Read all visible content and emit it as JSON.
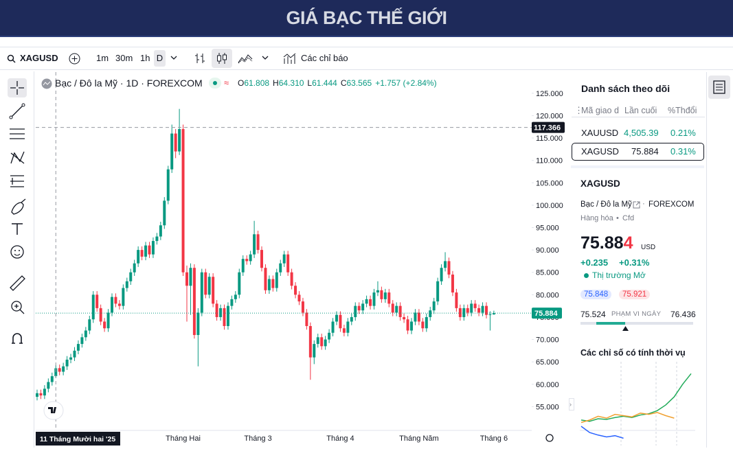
{
  "header": {
    "title": "GIÁ BẠC THẾ GIỚI"
  },
  "toolbar": {
    "symbol": "XAGUSD",
    "intervals": [
      "1m",
      "30m",
      "1h",
      "D"
    ],
    "indicators": "Các chỉ báo"
  },
  "chart_data": {
    "type": "candlestick",
    "title": "Bạc / Đô la Mỹ · 1D · FOREXCOM",
    "ohlc": [
      {
        "label": "O",
        "value": "61.808"
      },
      {
        "label": "H",
        "value": "64.310"
      },
      {
        "label": "L",
        "value": "61.444"
      },
      {
        "label": "C",
        "value": "63.565"
      }
    ],
    "change": "+1.757 (+2.84%)",
    "candles": [
      [
        57.2,
        58.8,
        56.4,
        58.0
      ],
      [
        58.0,
        58.8,
        56.7,
        57.5
      ],
      [
        57.5,
        59.8,
        56.7,
        59.0
      ],
      [
        59.0,
        61.3,
        58.2,
        60.5
      ],
      [
        60.5,
        62.6,
        59.7,
        61.8
      ],
      [
        61.808,
        64.31,
        61.444,
        63.565
      ],
      [
        63.6,
        64.4,
        62.0,
        62.8
      ],
      [
        62.8,
        64.8,
        62.0,
        64.0
      ],
      [
        64.0,
        66.3,
        63.2,
        65.5
      ],
      [
        65.5,
        66.8,
        64.7,
        66.0
      ],
      [
        66.0,
        68.3,
        65.2,
        67.5
      ],
      [
        67.5,
        69.8,
        66.7,
        69.0
      ],
      [
        69.0,
        71.3,
        68.2,
        70.5
      ],
      [
        70.5,
        72.8,
        69.7,
        72.0
      ],
      [
        72.0,
        75.3,
        71.2,
        74.5
      ],
      [
        74.5,
        80.8,
        73.7,
        80.0
      ],
      [
        80.0,
        80.8,
        76.2,
        77.0
      ],
      [
        77.0,
        77.8,
        73.2,
        74.0
      ],
      [
        74.0,
        74.8,
        71.7,
        72.5
      ],
      [
        72.5,
        76.8,
        71.7,
        76.0
      ],
      [
        76.0,
        80.3,
        75.2,
        79.5
      ],
      [
        79.5,
        80.3,
        77.2,
        78.0
      ],
      [
        78.0,
        78.8,
        76.7,
        77.5
      ],
      [
        77.5,
        82.3,
        76.7,
        81.5
      ],
      [
        81.5,
        83.8,
        80.7,
        83.0
      ],
      [
        83.0,
        85.8,
        82.2,
        85.0
      ],
      [
        85.0,
        87.8,
        84.2,
        87.0
      ],
      [
        87.0,
        90.8,
        86.2,
        90.0
      ],
      [
        90.0,
        90.8,
        87.7,
        88.5
      ],
      [
        88.5,
        91.8,
        87.7,
        91.0
      ],
      [
        91.0,
        91.8,
        88.2,
        89.0
      ],
      [
        89.0,
        92.8,
        88.2,
        92.0
      ],
      [
        92.0,
        93.8,
        91.2,
        93.0
      ],
      [
        93.0,
        96.3,
        92.2,
        95.5
      ],
      [
        95.5,
        101.8,
        94.7,
        101.0
      ],
      [
        101.0,
        108.8,
        100.2,
        108.0
      ],
      [
        108.0,
        118.0,
        107.2,
        116.0
      ],
      [
        116.0,
        117.0,
        110.5,
        112.0
      ],
      [
        112.0,
        121.5,
        111.2,
        117.0
      ],
      [
        117.0,
        118.0,
        84.2,
        85.0
      ],
      [
        85.0,
        86.5,
        74.0,
        82.0
      ],
      [
        82.0,
        87.0,
        75.5,
        86.0
      ],
      [
        86.0,
        86.8,
        70.2,
        71.0
      ],
      [
        71.0,
        77.0,
        64.0,
        76.0
      ],
      [
        76.0,
        85.8,
        75.2,
        85.0
      ],
      [
        85.0,
        85.8,
        79.2,
        80.0
      ],
      [
        80.0,
        84.8,
        79.2,
        84.0
      ],
      [
        84.0,
        84.8,
        77.2,
        78.0
      ],
      [
        78.0,
        78.8,
        74.2,
        75.0
      ],
      [
        75.0,
        77.8,
        74.2,
        77.0
      ],
      [
        77.0,
        77.8,
        72.2,
        73.0
      ],
      [
        73.0,
        78.3,
        72.2,
        77.5
      ],
      [
        77.5,
        79.8,
        76.7,
        79.0
      ],
      [
        79.0,
        80.8,
        78.2,
        80.0
      ],
      [
        80.0,
        85.8,
        79.2,
        85.0
      ],
      [
        85.0,
        88.8,
        84.2,
        88.0
      ],
      [
        88.0,
        88.8,
        86.7,
        87.5
      ],
      [
        87.5,
        89.8,
        86.7,
        89.0
      ],
      [
        89.0,
        96.5,
        88.2,
        93.5
      ],
      [
        93.5,
        94.3,
        89.2,
        90.0
      ],
      [
        90.0,
        90.8,
        85.2,
        86.0
      ],
      [
        86.0,
        86.8,
        80.2,
        81.0
      ],
      [
        81.0,
        84.3,
        80.2,
        83.5
      ],
      [
        83.5,
        84.3,
        80.7,
        81.5
      ],
      [
        81.5,
        85.8,
        80.7,
        85.0
      ],
      [
        85.0,
        87.8,
        84.2,
        87.0
      ],
      [
        87.0,
        89.8,
        86.2,
        89.0
      ],
      [
        89.0,
        89.8,
        84.2,
        85.0
      ],
      [
        85.0,
        85.8,
        81.2,
        82.0
      ],
      [
        82.0,
        82.8,
        79.2,
        80.0
      ],
      [
        80.0,
        80.8,
        77.7,
        78.5
      ],
      [
        78.5,
        79.3,
        75.2,
        76.0
      ],
      [
        76.0,
        76.8,
        72.2,
        73.0
      ],
      [
        73.0,
        73.8,
        61.0,
        66.0
      ],
      [
        66.0,
        69.8,
        64.5,
        69.0
      ],
      [
        69.0,
        71.3,
        68.2,
        70.5
      ],
      [
        70.5,
        71.3,
        67.7,
        68.5
      ],
      [
        68.5,
        70.8,
        67.7,
        70.0
      ],
      [
        70.0,
        72.3,
        69.2,
        71.5
      ],
      [
        71.5,
        74.8,
        70.7,
        74.0
      ],
      [
        74.0,
        76.3,
        73.2,
        75.5
      ],
      [
        75.5,
        76.3,
        71.7,
        72.5
      ],
      [
        72.5,
        73.3,
        70.7,
        71.5
      ],
      [
        71.5,
        74.8,
        70.7,
        74.0
      ],
      [
        74.0,
        75.8,
        73.2,
        75.0
      ],
      [
        75.0,
        78.3,
        74.2,
        77.5
      ],
      [
        77.5,
        78.3,
        75.7,
        76.5
      ],
      [
        76.5,
        78.8,
        75.7,
        78.0
      ],
      [
        78.0,
        79.8,
        77.2,
        79.0
      ],
      [
        79.0,
        79.8,
        76.7,
        77.5
      ],
      [
        77.5,
        81.3,
        76.7,
        80.5
      ],
      [
        80.5,
        83.0,
        79.7,
        81.0
      ],
      [
        81.0,
        81.8,
        78.2,
        79.0
      ],
      [
        79.0,
        81.3,
        78.2,
        80.5
      ],
      [
        80.5,
        81.3,
        77.2,
        78.0
      ],
      [
        78.0,
        78.8,
        75.2,
        76.0
      ],
      [
        76.0,
        78.3,
        75.2,
        77.5
      ],
      [
        77.5,
        78.3,
        74.2,
        75.0
      ],
      [
        75.0,
        75.8,
        73.7,
        74.5
      ],
      [
        74.5,
        75.3,
        71.2,
        72.0
      ],
      [
        72.0,
        74.8,
        71.2,
        74.0
      ],
      [
        74.0,
        76.8,
        73.2,
        76.0
      ],
      [
        76.0,
        76.8,
        73.2,
        74.0
      ],
      [
        74.0,
        74.8,
        71.7,
        72.5
      ],
      [
        72.5,
        75.8,
        71.7,
        75.0
      ],
      [
        75.0,
        77.3,
        74.2,
        76.5
      ],
      [
        76.5,
        79.3,
        75.7,
        78.5
      ],
      [
        78.5,
        83.8,
        77.7,
        83.0
      ],
      [
        83.0,
        86.8,
        82.2,
        86.0
      ],
      [
        86.0,
        89.5,
        85.2,
        87.5
      ],
      [
        87.5,
        88.3,
        83.7,
        84.5
      ],
      [
        84.5,
        85.3,
        79.7,
        80.5
      ],
      [
        80.5,
        81.3,
        76.2,
        77.0
      ],
      [
        77.0,
        77.8,
        74.2,
        75.0
      ],
      [
        75.0,
        77.8,
        74.2,
        77.0
      ],
      [
        77.0,
        77.8,
        75.2,
        76.0
      ],
      [
        76.0,
        78.8,
        75.2,
        78.0
      ],
      [
        78.0,
        78.8,
        76.2,
        77.0
      ],
      [
        77.0,
        77.8,
        75.2,
        76.0
      ],
      [
        76.0,
        78.3,
        75.2,
        77.5
      ],
      [
        77.5,
        78.3,
        74.7,
        75.5
      ],
      [
        75.5,
        76.3,
        72.0,
        75.6
      ],
      [
        75.6,
        76.436,
        75.524,
        75.884
      ]
    ],
    "ylim": [
      50,
      128.5
    ],
    "yticks": [
      {
        "value": 55,
        "label": "55.000"
      },
      {
        "value": 60,
        "label": "60.000"
      },
      {
        "value": 65,
        "label": "65.000"
      },
      {
        "value": 70,
        "label": "70.000"
      },
      {
        "value": 75,
        "label": "75.000"
      },
      {
        "value": 80,
        "label": "80.000"
      },
      {
        "value": 85,
        "label": "85.000"
      },
      {
        "value": 90,
        "label": "90.000"
      },
      {
        "value": 95,
        "label": "95.000"
      },
      {
        "value": 100,
        "label": "100.000"
      },
      {
        "value": 105,
        "label": "105.000"
      },
      {
        "value": 110,
        "label": "110.000"
      },
      {
        "value": 115,
        "label": "115.000"
      },
      {
        "value": 120,
        "label": "120.000"
      },
      {
        "value": 125,
        "label": "125.000"
      }
    ],
    "xticks": [
      {
        "value": 39,
        "label": "Tháng Hai"
      },
      {
        "value": 59,
        "label": "Tháng 3"
      },
      {
        "value": 81,
        "label": "Tháng 4"
      },
      {
        "value": 102,
        "label": "Tháng Năm"
      },
      {
        "value": 122,
        "label": "Tháng 6"
      }
    ],
    "up_color": "#089981",
    "down_color": "#f23645",
    "crosshair": {
      "index": 5,
      "price": 117.366,
      "date_label": "11 Tháng Mười hai '25"
    }
  },
  "watchlist": {
    "title": "Danh sách theo dõi",
    "columns": [
      "Mã giao d",
      "Lần cuối",
      "%Thđổi"
    ],
    "rows": [
      [
        "XAUUSD",
        "4,505.39",
        "0.21%"
      ],
      [
        "XAGUSD",
        "75.884",
        "0.31%"
      ]
    ]
  },
  "details": {
    "symbol": "XAGUSD",
    "name": "Bạc / Đô la Mỹ",
    "exchange": "FOREXCOM",
    "category": "Hàng hóa",
    "kind": "Cfd",
    "price_main": "75.88",
    "price_last_digit": "4",
    "currency": "USD",
    "change": "+0.235",
    "change_pct": "+0.31%",
    "status": "Thị trường Mở",
    "bid": "75.848",
    "ask": "75.921",
    "range_low": "75.524",
    "range_label": "PHẠM VI NGÀY",
    "range_high": "76.436"
  },
  "seasonals": {
    "title": "Các chỉ số có tính thời vụ",
    "ylim": [
      -15,
      100
    ],
    "series": [
      {
        "color": "#22ab5a",
        "values": [
          18,
          16,
          20,
          19,
          22,
          24,
          22,
          26,
          28,
          33,
          42,
          55,
          75,
          92
        ]
      },
      {
        "color": "#f0a030",
        "values": [
          14,
          18,
          24,
          21,
          27,
          25,
          23,
          29,
          27,
          30,
          25,
          21
        ]
      },
      {
        "color": "#2962ff",
        "values": [
          8,
          -2,
          -6,
          -9,
          -7,
          -11
        ]
      }
    ]
  }
}
